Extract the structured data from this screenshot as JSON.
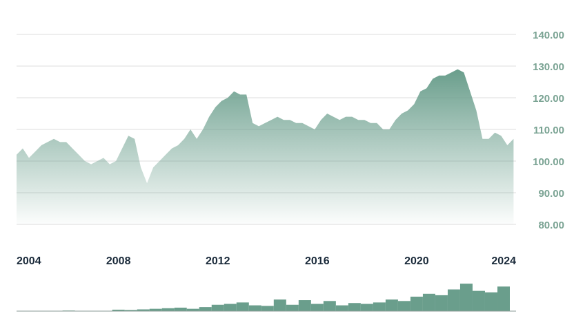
{
  "chart_data": {
    "type": "area",
    "color": "#6a9e8c",
    "x": [
      2003.9,
      2004.15,
      2004.4,
      2004.65,
      2004.9,
      2005.15,
      2005.4,
      2005.65,
      2005.9,
      2006.15,
      2006.4,
      2006.65,
      2006.9,
      2007.15,
      2007.4,
      2007.65,
      2007.9,
      2008.15,
      2008.4,
      2008.65,
      2008.9,
      2009.15,
      2009.4,
      2009.65,
      2009.9,
      2010.15,
      2010.4,
      2010.65,
      2010.9,
      2011.15,
      2011.4,
      2011.65,
      2011.9,
      2012.15,
      2012.4,
      2012.65,
      2012.9,
      2013.15,
      2013.4,
      2013.65,
      2013.9,
      2014.15,
      2014.4,
      2014.65,
      2014.9,
      2015.15,
      2015.4,
      2015.65,
      2015.9,
      2016.15,
      2016.4,
      2016.65,
      2016.9,
      2017.15,
      2017.4,
      2017.65,
      2017.9,
      2018.15,
      2018.4,
      2018.65,
      2018.9,
      2019.15,
      2019.4,
      2019.65,
      2019.9,
      2020.15,
      2020.4,
      2020.65,
      2020.9,
      2021.15,
      2021.4,
      2021.65,
      2021.9,
      2022.15,
      2022.4,
      2022.65,
      2022.9,
      2023.15,
      2023.4,
      2023.65,
      2023.9
    ],
    "values": [
      102,
      104,
      101,
      103,
      105,
      106,
      107,
      106,
      106,
      104,
      102,
      100,
      99,
      100,
      101,
      99,
      100,
      104,
      108,
      107,
      98,
      93,
      98,
      100,
      102,
      104,
      105,
      107,
      110,
      107,
      110,
      114,
      117,
      119,
      120,
      122,
      121,
      121,
      112,
      111,
      112,
      113,
      114,
      113,
      113,
      112,
      112,
      111,
      110,
      113,
      115,
      114,
      113,
      114,
      114,
      113,
      113,
      112,
      112,
      110,
      110,
      113,
      115,
      116,
      118,
      122,
      123,
      126,
      127,
      127,
      128,
      129,
      128,
      122,
      116,
      107,
      107,
      109,
      108,
      105,
      107
    ],
    "xlim": [
      2003.9,
      2024.0
    ],
    "xticks": [
      2004,
      2008,
      2012,
      2016,
      2020,
      2024
    ],
    "ylim": [
      80,
      140
    ],
    "yticks": [
      {
        "value": 80,
        "label": "80.00"
      },
      {
        "value": 90,
        "label": "90.00"
      },
      {
        "value": 100,
        "label": "100.00"
      },
      {
        "value": 110,
        "label": "110.00"
      },
      {
        "value": 120,
        "label": "120.00"
      },
      {
        "value": 130,
        "label": "130.00"
      },
      {
        "value": 140,
        "label": "140.00"
      }
    ],
    "grid": true,
    "volume": {
      "color": "#6a9e8c",
      "x": [
        2004.0,
        2004.5,
        2005.0,
        2005.5,
        2006.0,
        2006.5,
        2007.0,
        2007.5,
        2008.0,
        2008.5,
        2009.0,
        2009.5,
        2010.0,
        2010.5,
        2011.0,
        2011.5,
        2012.0,
        2012.5,
        2013.0,
        2013.5,
        2014.0,
        2014.5,
        2015.0,
        2015.5,
        2016.0,
        2016.5,
        2017.0,
        2017.5,
        2018.0,
        2018.5,
        2019.0,
        2019.5,
        2020.0,
        2020.5,
        2021.0,
        2021.5,
        2022.0,
        2022.5,
        2023.0,
        2023.5
      ],
      "values": [
        1,
        1,
        1,
        1,
        2,
        1,
        1,
        1,
        5,
        4,
        6,
        8,
        10,
        12,
        8,
        14,
        22,
        25,
        30,
        20,
        18,
        40,
        22,
        38,
        25,
        35,
        20,
        28,
        25,
        30,
        40,
        35,
        50,
        60,
        55,
        75,
        95,
        70,
        65,
        85
      ],
      "y2lim": [
        0,
        100
      ]
    }
  }
}
